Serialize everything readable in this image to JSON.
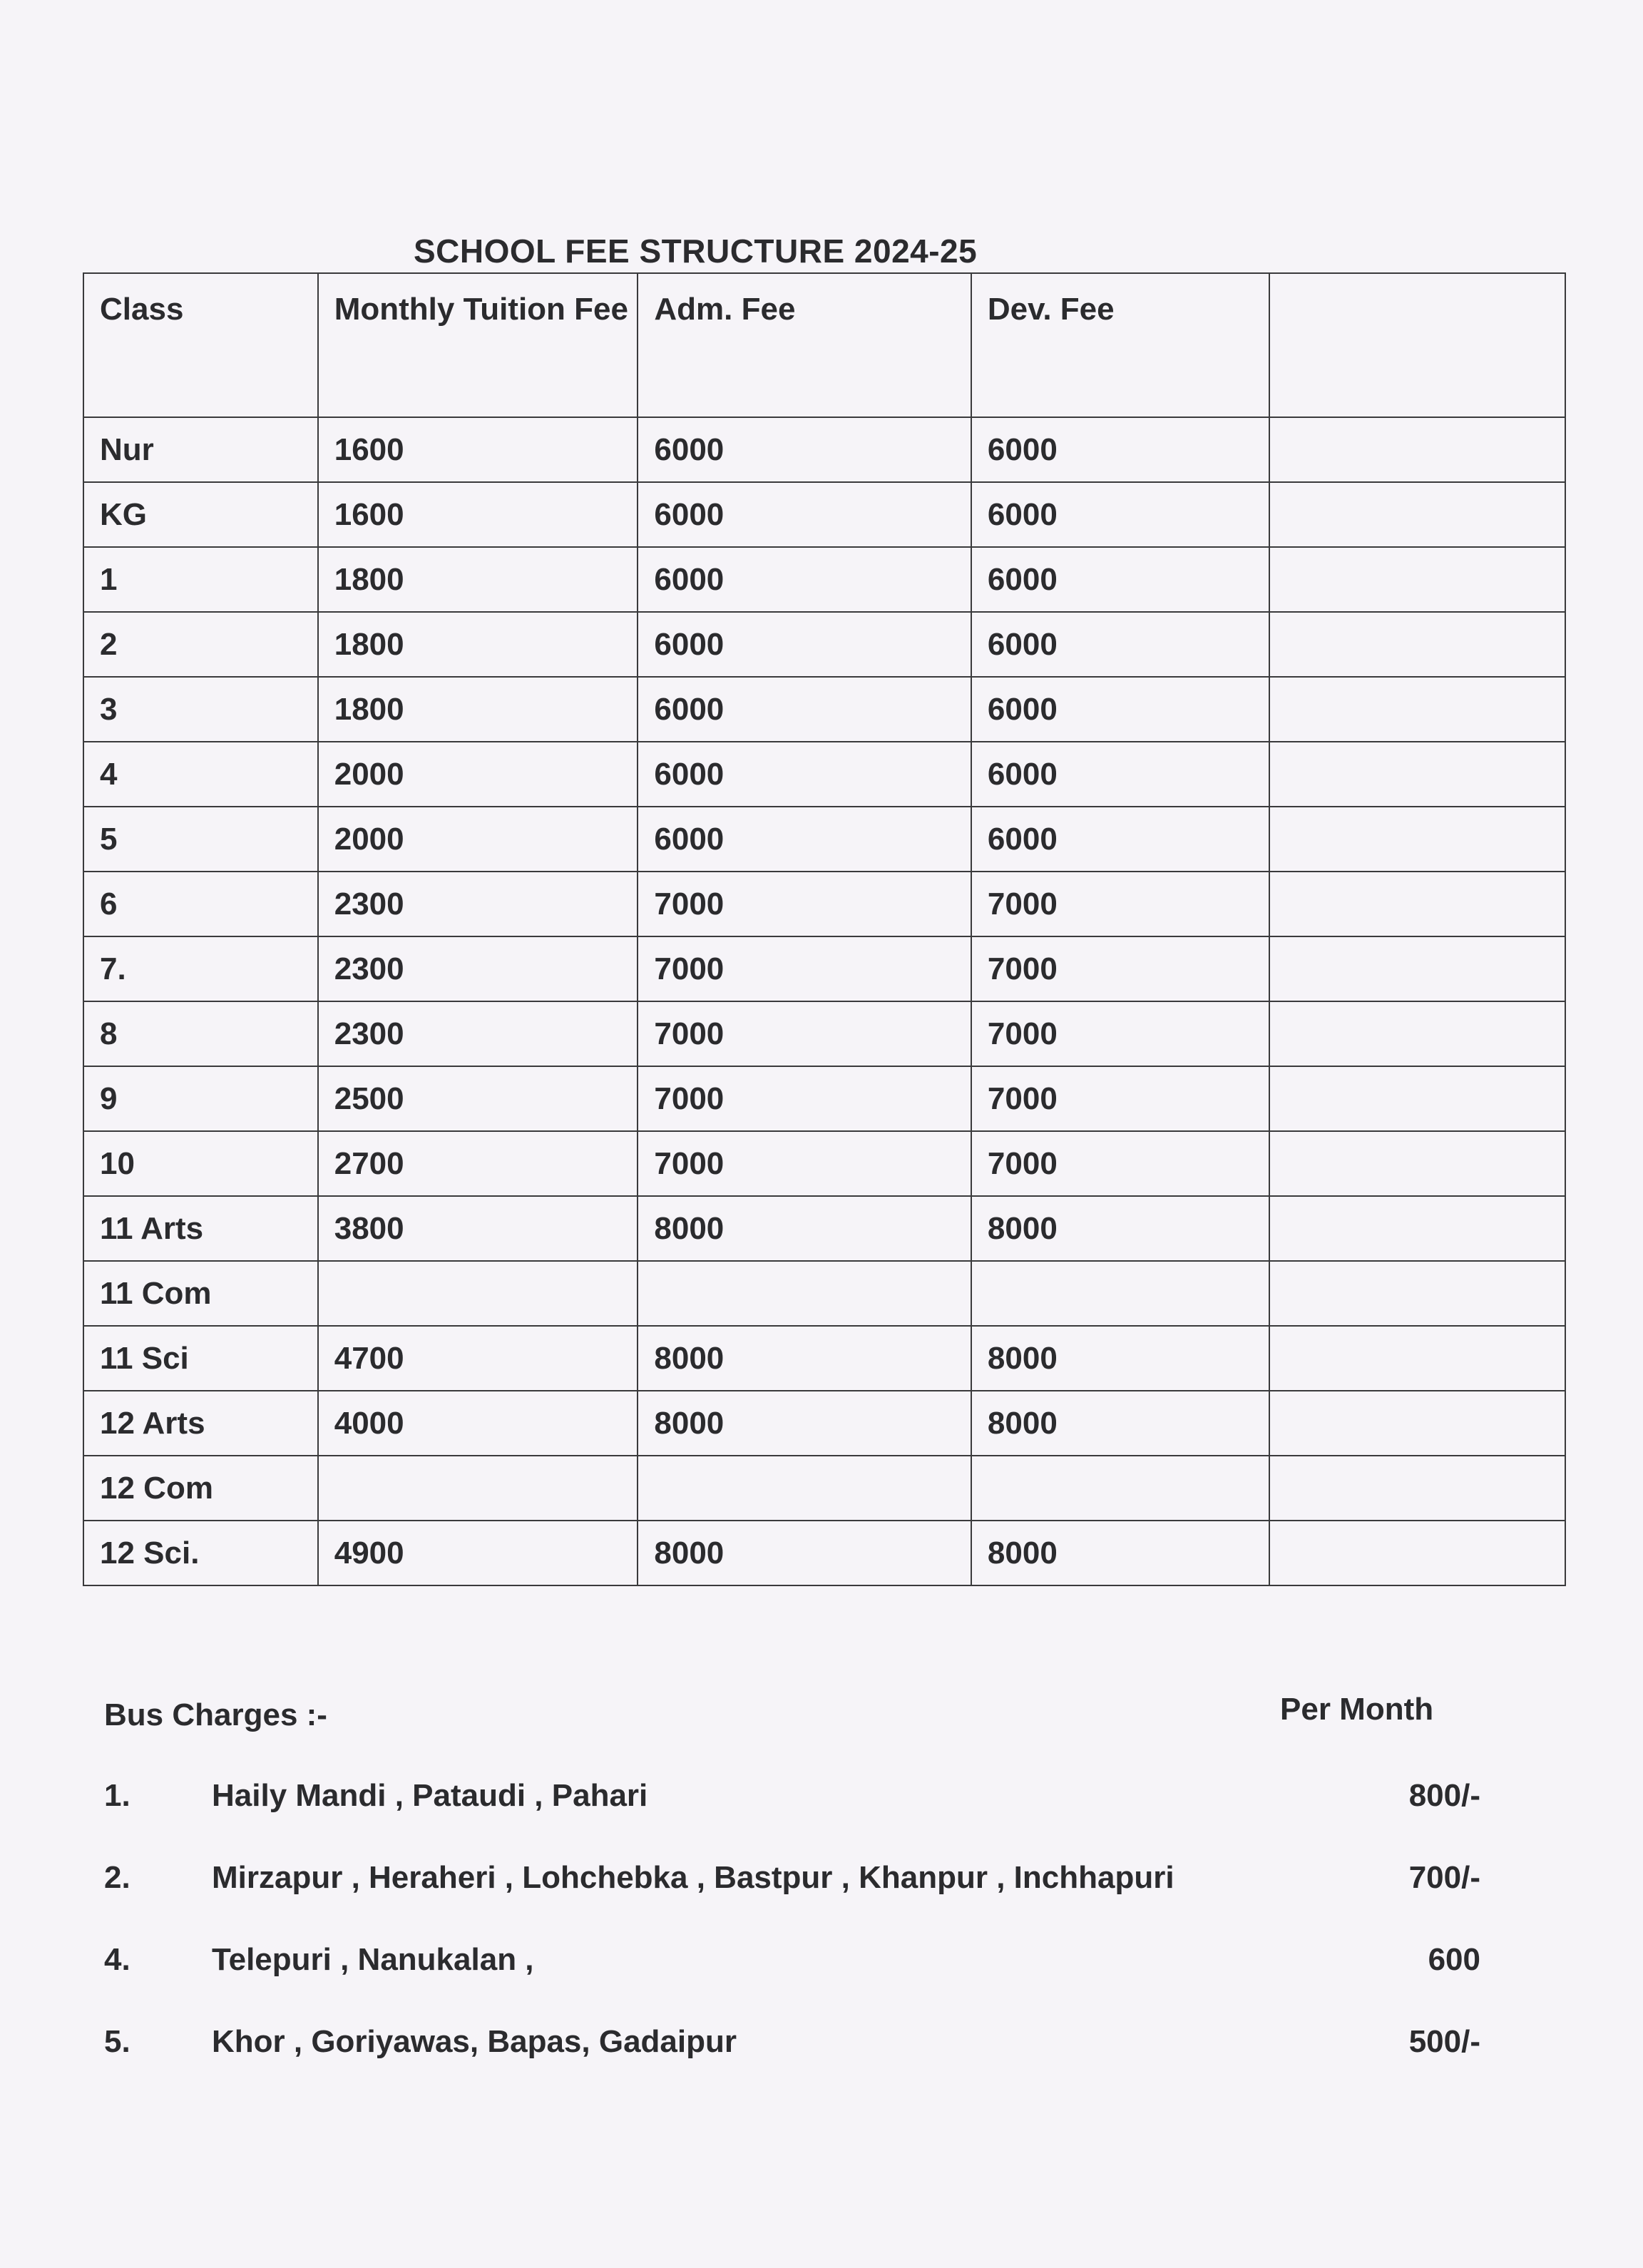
{
  "title": "SCHOOL FEE STRUCTURE  2024-25",
  "table": {
    "headers": [
      "Class",
      "Monthly Tuition Fee",
      "Adm. Fee",
      "Dev.  Fee",
      ""
    ],
    "rows": [
      [
        "Nur",
        "1600",
        "6000",
        "6000",
        ""
      ],
      [
        "KG",
        "1600",
        "6000",
        "6000",
        ""
      ],
      [
        "1",
        "1800",
        "6000",
        "6000",
        ""
      ],
      [
        "2",
        "1800",
        "6000",
        "6000",
        ""
      ],
      [
        "3",
        "1800",
        "6000",
        "6000",
        ""
      ],
      [
        "4",
        "2000",
        "6000",
        "6000",
        ""
      ],
      [
        "5",
        "2000",
        "6000",
        "6000",
        ""
      ],
      [
        "6",
        "2300",
        "7000",
        "7000",
        ""
      ],
      [
        "7.",
        "2300",
        "7000",
        "7000",
        ""
      ],
      [
        "8",
        "2300",
        "7000",
        "7000",
        ""
      ],
      [
        "9",
        "2500",
        "7000",
        "7000",
        ""
      ],
      [
        "10",
        "2700",
        "7000",
        "7000",
        ""
      ],
      [
        "11 Arts",
        "3800",
        "8000",
        "8000",
        ""
      ],
      [
        "11 Com",
        "",
        "",
        "",
        ""
      ],
      [
        "11 Sci",
        "4700",
        "8000",
        "8000",
        ""
      ],
      [
        "12 Arts",
        "4000",
        "8000",
        "8000",
        ""
      ],
      [
        "12 Com",
        "",
        "",
        "",
        ""
      ],
      [
        "12 Sci.",
        "4900",
        "8000",
        "8000",
        ""
      ]
    ]
  },
  "bus": {
    "heading": "Bus Charges :-",
    "per_label": "Per Month",
    "items": [
      {
        "num": "1.",
        "places": "Haily Mandi , Pataudi ,  Pahari",
        "amount": "800/-"
      },
      {
        "num": "2.",
        "places": "Mirzapur , Heraheri , Lohchebka , Bastpur , Khanpur , Inchhapuri",
        "amount": "700/-"
      },
      {
        "num": "4.",
        "places": "Telepuri , Nanukalan ,",
        "amount": "600"
      },
      {
        "num": "5.",
        "places": " Khor , Goriyawas, Bapas, Gadaipur",
        "amount": "500/-"
      }
    ]
  }
}
